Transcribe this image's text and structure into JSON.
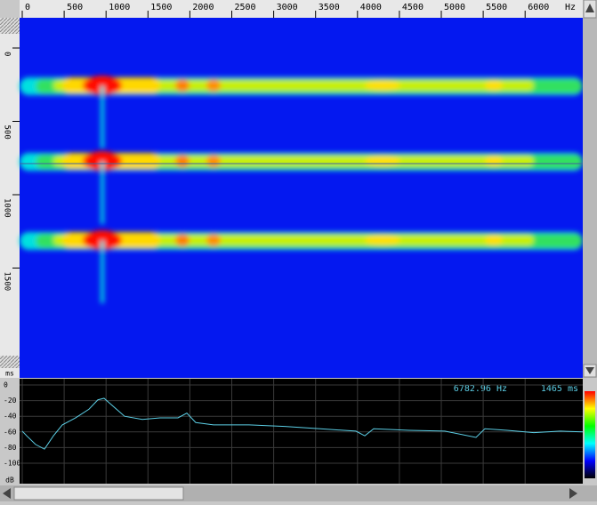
{
  "top_ruler": {
    "ticks": [
      0,
      500,
      1000,
      1500,
      2000,
      2500,
      3000,
      3500,
      4000,
      4500,
      5000,
      5500,
      6000
    ],
    "unit": "Hz"
  },
  "left_ruler": {
    "ticks": [
      0,
      500,
      1000,
      1500
    ],
    "unit": "ms"
  },
  "spectrum": {
    "db_ticks": [
      0,
      -20,
      -40,
      -60,
      -80,
      -100
    ],
    "unit": "dB",
    "frequency_readout": "6782.96 Hz",
    "time_readout": "1465 ms",
    "frequencies": [
      0,
      53,
      159,
      265,
      372,
      478,
      637,
      796,
      902,
      976,
      1061,
      1221,
      1433,
      1645,
      1858,
      1964,
      2070,
      2282,
      2707,
      3132,
      3556,
      3981,
      4087,
      4193,
      4618,
      5042,
      5414,
      5520,
      5786,
      6104,
      6423,
      6688
    ],
    "levels": [
      -59,
      -65,
      -76,
      -82,
      -65,
      -51,
      -42,
      -31,
      -19,
      -17,
      -25,
      -40,
      -44,
      -42,
      -42,
      -36,
      -48,
      -51,
      -51,
      -53,
      -56,
      -59,
      -65,
      -56,
      -58,
      -59,
      -67,
      -56,
      -58,
      -61,
      -59,
      -60
    ],
    "color": "#5ccfe6"
  }
}
